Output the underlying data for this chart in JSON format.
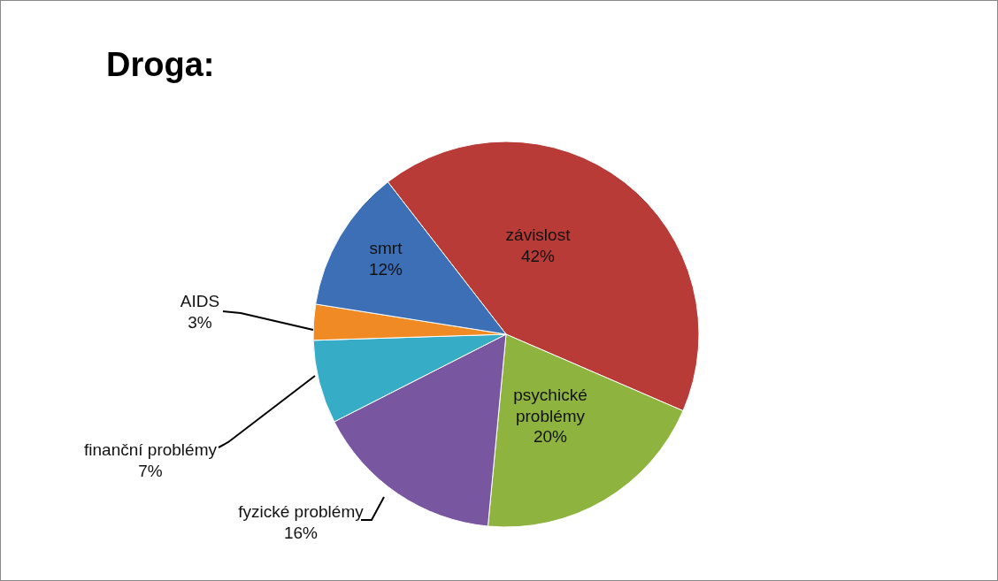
{
  "chart_data": {
    "type": "pie",
    "title": "Droga:",
    "categories": [
      "závislost",
      "psychické problémy",
      "fyzické problémy",
      "finanční problémy",
      "AIDS",
      "smrt"
    ],
    "values": [
      42,
      20,
      16,
      7,
      3,
      12
    ],
    "value_labels": [
      "42%",
      "20%",
      "16%",
      "7%",
      "3%",
      "12%"
    ],
    "colors": [
      "#b93b37",
      "#8fb33f",
      "#7856a0",
      "#36acc6",
      "#ef8a25",
      "#3d6fb6"
    ],
    "legend": false
  }
}
